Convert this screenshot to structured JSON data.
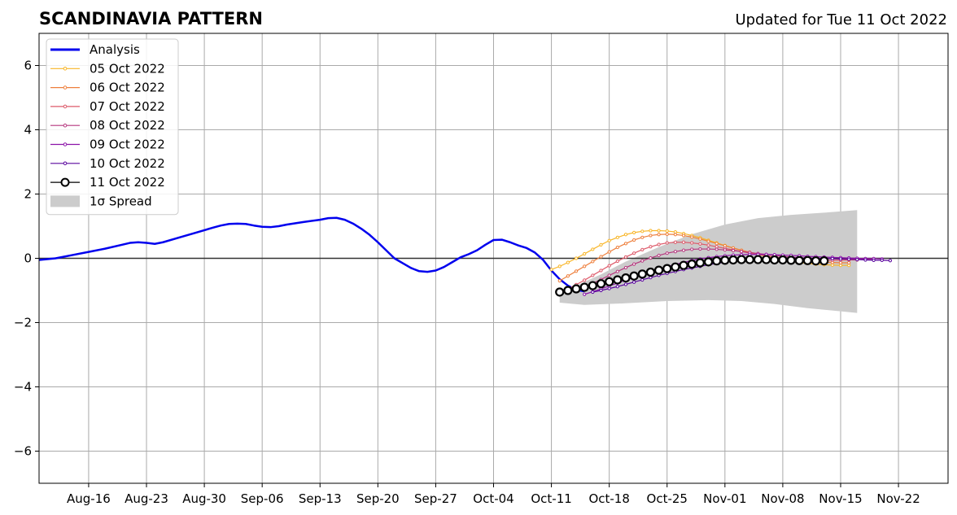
{
  "chart_data": {
    "type": "line",
    "title": "SCANDINAVIA PATTERN",
    "subtitle": "Updated for Tue 11 Oct 2022",
    "xlabel": "",
    "ylabel": "",
    "x_start": "2022-08-10",
    "x_end": "2022-11-28",
    "ylim": [
      -7,
      7
    ],
    "grid": true,
    "legend_position": "top-left",
    "xticks": [
      {
        "date": "2022-08-16",
        "label": "Aug-16"
      },
      {
        "date": "2022-08-23",
        "label": "Aug-23"
      },
      {
        "date": "2022-08-30",
        "label": "Aug-30"
      },
      {
        "date": "2022-09-06",
        "label": "Sep-06"
      },
      {
        "date": "2022-09-13",
        "label": "Sep-13"
      },
      {
        "date": "2022-09-20",
        "label": "Sep-20"
      },
      {
        "date": "2022-09-27",
        "label": "Sep-27"
      },
      {
        "date": "2022-10-04",
        "label": "Oct-04"
      },
      {
        "date": "2022-10-11",
        "label": "Oct-11"
      },
      {
        "date": "2022-10-18",
        "label": "Oct-18"
      },
      {
        "date": "2022-10-25",
        "label": "Oct-25"
      },
      {
        "date": "2022-11-01",
        "label": "Nov-01"
      },
      {
        "date": "2022-11-08",
        "label": "Nov-08"
      },
      {
        "date": "2022-11-15",
        "label": "Nov-15"
      },
      {
        "date": "2022-11-22",
        "label": "Nov-22"
      }
    ],
    "yticks": [
      {
        "value": 6,
        "label": "6"
      },
      {
        "value": 4,
        "label": "4"
      },
      {
        "value": 2,
        "label": "2"
      },
      {
        "value": 0,
        "label": "0"
      },
      {
        "value": -2,
        "label": "−2"
      },
      {
        "value": -4,
        "label": "−4"
      },
      {
        "value": -6,
        "label": "−6"
      }
    ],
    "analysis": {
      "name": "Analysis",
      "color": "#0000ee",
      "points": [
        [
          "2022-08-10",
          -0.05
        ],
        [
          "2022-08-12",
          0.0
        ],
        [
          "2022-08-14",
          0.1
        ],
        [
          "2022-08-16",
          0.2
        ],
        [
          "2022-08-18",
          0.3
        ],
        [
          "2022-08-20",
          0.42
        ],
        [
          "2022-08-21",
          0.48
        ],
        [
          "2022-08-22",
          0.5
        ],
        [
          "2022-08-23",
          0.48
        ],
        [
          "2022-08-24",
          0.45
        ],
        [
          "2022-08-25",
          0.5
        ],
        [
          "2022-08-27",
          0.65
        ],
        [
          "2022-08-29",
          0.8
        ],
        [
          "2022-08-31",
          0.95
        ],
        [
          "2022-09-01",
          1.02
        ],
        [
          "2022-09-02",
          1.07
        ],
        [
          "2022-09-03",
          1.08
        ],
        [
          "2022-09-04",
          1.07
        ],
        [
          "2022-09-05",
          1.02
        ],
        [
          "2022-09-06",
          0.98
        ],
        [
          "2022-09-07",
          0.97
        ],
        [
          "2022-09-08",
          1.0
        ],
        [
          "2022-09-09",
          1.05
        ],
        [
          "2022-09-11",
          1.13
        ],
        [
          "2022-09-13",
          1.2
        ],
        [
          "2022-09-14",
          1.25
        ],
        [
          "2022-09-15",
          1.26
        ],
        [
          "2022-09-16",
          1.2
        ],
        [
          "2022-09-17",
          1.08
        ],
        [
          "2022-09-18",
          0.92
        ],
        [
          "2022-09-19",
          0.73
        ],
        [
          "2022-09-20",
          0.5
        ],
        [
          "2022-09-21",
          0.25
        ],
        [
          "2022-09-22",
          0.0
        ],
        [
          "2022-09-23",
          -0.15
        ],
        [
          "2022-09-24",
          -0.3
        ],
        [
          "2022-09-25",
          -0.4
        ],
        [
          "2022-09-26",
          -0.42
        ],
        [
          "2022-09-27",
          -0.38
        ],
        [
          "2022-09-28",
          -0.27
        ],
        [
          "2022-09-29",
          -0.12
        ],
        [
          "2022-09-30",
          0.03
        ],
        [
          "2022-10-01",
          0.13
        ],
        [
          "2022-10-02",
          0.25
        ],
        [
          "2022-10-03",
          0.42
        ],
        [
          "2022-10-04",
          0.57
        ],
        [
          "2022-10-05",
          0.58
        ],
        [
          "2022-10-06",
          0.5
        ],
        [
          "2022-10-07",
          0.4
        ],
        [
          "2022-10-08",
          0.32
        ],
        [
          "2022-10-09",
          0.18
        ],
        [
          "2022-10-10",
          -0.05
        ],
        [
          "2022-10-11",
          -0.38
        ],
        [
          "2022-10-12",
          -0.65
        ],
        [
          "2022-10-13",
          -0.85
        ],
        [
          "2022-10-14",
          -0.98
        ],
        [
          "2022-10-15",
          -1.03
        ]
      ]
    },
    "spread": {
      "name": "1σ Spread",
      "color": "#cccccc",
      "upper": [
        [
          "2022-10-12",
          -1.02
        ],
        [
          "2022-10-14",
          -0.85
        ],
        [
          "2022-10-17",
          -0.5
        ],
        [
          "2022-10-20",
          -0.1
        ],
        [
          "2022-10-24",
          0.35
        ],
        [
          "2022-10-28",
          0.75
        ],
        [
          "2022-11-01",
          1.05
        ],
        [
          "2022-11-05",
          1.25
        ],
        [
          "2022-11-09",
          1.35
        ],
        [
          "2022-11-13",
          1.42
        ],
        [
          "2022-11-17",
          1.5
        ]
      ],
      "lower": [
        [
          "2022-10-12",
          -1.38
        ],
        [
          "2022-10-15",
          -1.45
        ],
        [
          "2022-10-20",
          -1.4
        ],
        [
          "2022-10-25",
          -1.33
        ],
        [
          "2022-10-30",
          -1.3
        ],
        [
          "2022-11-03",
          -1.33
        ],
        [
          "2022-11-07",
          -1.42
        ],
        [
          "2022-11-11",
          -1.55
        ],
        [
          "2022-11-15",
          -1.65
        ],
        [
          "2022-11-17",
          -1.7
        ]
      ]
    },
    "forecasts": [
      {
        "name": "05 Oct 2022",
        "color": "#f8b526",
        "start": "2022-10-11",
        "values": [
          -0.35,
          -0.25,
          -0.13,
          0.0,
          0.14,
          0.28,
          0.42,
          0.55,
          0.65,
          0.74,
          0.8,
          0.84,
          0.86,
          0.86,
          0.85,
          0.82,
          0.77,
          0.71,
          0.64,
          0.56,
          0.48,
          0.4,
          0.32,
          0.25,
          0.18,
          0.12,
          0.06,
          0.0,
          -0.05,
          -0.1,
          -0.13,
          -0.16,
          -0.18,
          -0.2,
          -0.21,
          -0.22,
          -0.22
        ]
      },
      {
        "name": "06 Oct 2022",
        "color": "#ee7f3c",
        "start": "2022-10-12",
        "values": [
          -0.7,
          -0.55,
          -0.4,
          -0.25,
          -0.1,
          0.05,
          0.2,
          0.34,
          0.46,
          0.57,
          0.65,
          0.71,
          0.74,
          0.75,
          0.74,
          0.71,
          0.66,
          0.6,
          0.53,
          0.46,
          0.39,
          0.32,
          0.25,
          0.19,
          0.13,
          0.08,
          0.03,
          -0.01,
          -0.04,
          -0.07,
          -0.09,
          -0.11,
          -0.12,
          -0.13,
          -0.14,
          -0.14
        ]
      },
      {
        "name": "07 Oct 2022",
        "color": "#dd5a6a",
        "start": "2022-10-13",
        "values": [
          -0.95,
          -0.82,
          -0.68,
          -0.53,
          -0.38,
          -0.23,
          -0.09,
          0.04,
          0.16,
          0.27,
          0.36,
          0.43,
          0.48,
          0.5,
          0.5,
          0.48,
          0.45,
          0.41,
          0.36,
          0.31,
          0.26,
          0.21,
          0.16,
          0.12,
          0.08,
          0.04,
          0.01,
          -0.01,
          -0.03,
          -0.04,
          -0.05,
          -0.06,
          -0.06,
          -0.06,
          -0.05,
          -0.05
        ]
      },
      {
        "name": "08 Oct 2022",
        "color": "#b6377e",
        "start": "2022-10-14",
        "values": [
          -1.0,
          -0.9,
          -0.78,
          -0.66,
          -0.53,
          -0.41,
          -0.29,
          -0.18,
          -0.08,
          0.01,
          0.09,
          0.16,
          0.21,
          0.25,
          0.28,
          0.29,
          0.29,
          0.28,
          0.26,
          0.24,
          0.21,
          0.18,
          0.15,
          0.12,
          0.09,
          0.06,
          0.04,
          0.02,
          0.01,
          0.0,
          -0.01,
          -0.01,
          -0.02,
          -0.02,
          -0.02,
          -0.03,
          -0.03
        ]
      },
      {
        "name": "09 Oct 2022",
        "color": "#8c13a8",
        "start": "2022-10-15",
        "values": [
          -1.12,
          -1.04,
          -0.95,
          -0.86,
          -0.77,
          -0.68,
          -0.59,
          -0.5,
          -0.42,
          -0.34,
          -0.26,
          -0.19,
          -0.13,
          -0.07,
          -0.02,
          0.02,
          0.05,
          0.08,
          0.1,
          0.11,
          0.12,
          0.12,
          0.12,
          0.11,
          0.1,
          0.09,
          0.08,
          0.06,
          0.05,
          0.04,
          0.03,
          0.02,
          0.01,
          0.0,
          -0.01,
          -0.01,
          -0.02
        ]
      },
      {
        "name": "10 Oct 2022",
        "color": "#5a069e",
        "start": "2022-10-16",
        "values": [
          -1.05,
          -1.0,
          -0.94,
          -0.88,
          -0.81,
          -0.74,
          -0.67,
          -0.6,
          -0.53,
          -0.47,
          -0.41,
          -0.35,
          -0.3,
          -0.25,
          -0.2,
          -0.16,
          -0.12,
          -0.09,
          -0.06,
          -0.04,
          -0.02,
          -0.01,
          0.0,
          0.01,
          0.01,
          0.01,
          0.0,
          0.0,
          -0.01,
          -0.01,
          -0.02,
          -0.03,
          -0.04,
          -0.05,
          -0.06,
          -0.06,
          -0.07
        ]
      },
      {
        "name": "11 Oct 2022",
        "color": "#000000",
        "start": "2022-10-12",
        "values": [
          -1.05,
          -1.0,
          -0.95,
          -0.9,
          -0.85,
          -0.79,
          -0.73,
          -0.67,
          -0.61,
          -0.55,
          -0.49,
          -0.43,
          -0.37,
          -0.32,
          -0.27,
          -0.22,
          -0.18,
          -0.14,
          -0.11,
          -0.08,
          -0.06,
          -0.05,
          -0.04,
          -0.04,
          -0.04,
          -0.04,
          -0.05,
          -0.05,
          -0.06,
          -0.07,
          -0.07,
          -0.08,
          -0.08
        ]
      }
    ]
  }
}
